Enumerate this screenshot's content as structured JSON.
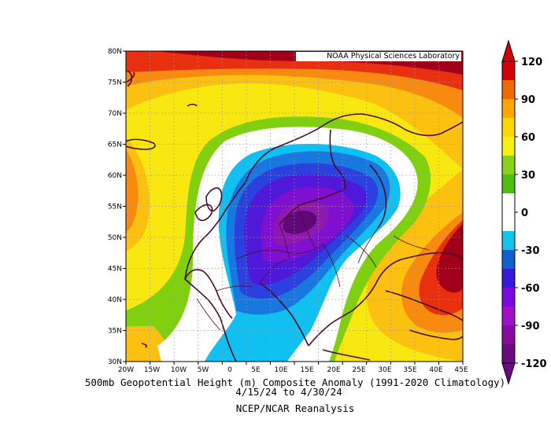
{
  "source_label": "NOAA Physical Sciences Laboratory",
  "captions": {
    "line1": "500mb Geopotential Height (m) Composite Anomaly (1991-2020 Climatology)",
    "line2": "4/15/24  to 4/30/24",
    "line3": "NCEP/NCAR Reanalysis"
  },
  "axes": {
    "lat_labels": [
      "80N",
      "75N",
      "70N",
      "65N",
      "60N",
      "55N",
      "50N",
      "45N",
      "40N",
      "35N",
      "30N"
    ],
    "lon_labels": [
      "20W",
      "15W",
      "10W",
      "5W",
      "0",
      "5E",
      "10E",
      "15E",
      "20E",
      "25E",
      "30E",
      "35E",
      "40E",
      "45E"
    ]
  },
  "colorbar": {
    "labels": [
      "120",
      "90",
      "60",
      "30",
      "0",
      "-30",
      "-60",
      "-90",
      "-120"
    ],
    "colors": [
      "#d1000a",
      "#f06a00",
      "#ffa500",
      "#ffd700",
      "#8ad11a",
      "#ffffff",
      "#15c2e8",
      "#1060d0",
      "#3a18d8",
      "#7a0ae0",
      "#a010c8",
      "#6a0a80"
    ]
  },
  "map_colors": {
    "dark_red": "#a0001a",
    "red": "#e83010",
    "orange": "#f88a10",
    "gold": "#fcc010",
    "yellow": "#f8e810",
    "green": "#80d010",
    "white": "#ffffff",
    "cyan": "#10c0f0",
    "blue": "#1878e0",
    "royal": "#2c40e0",
    "indigo": "#5018d8",
    "purple": "#8010d0",
    "violet": "#9018b0",
    "dark_purple": "#600878",
    "coast": "#4a0a2a"
  }
}
